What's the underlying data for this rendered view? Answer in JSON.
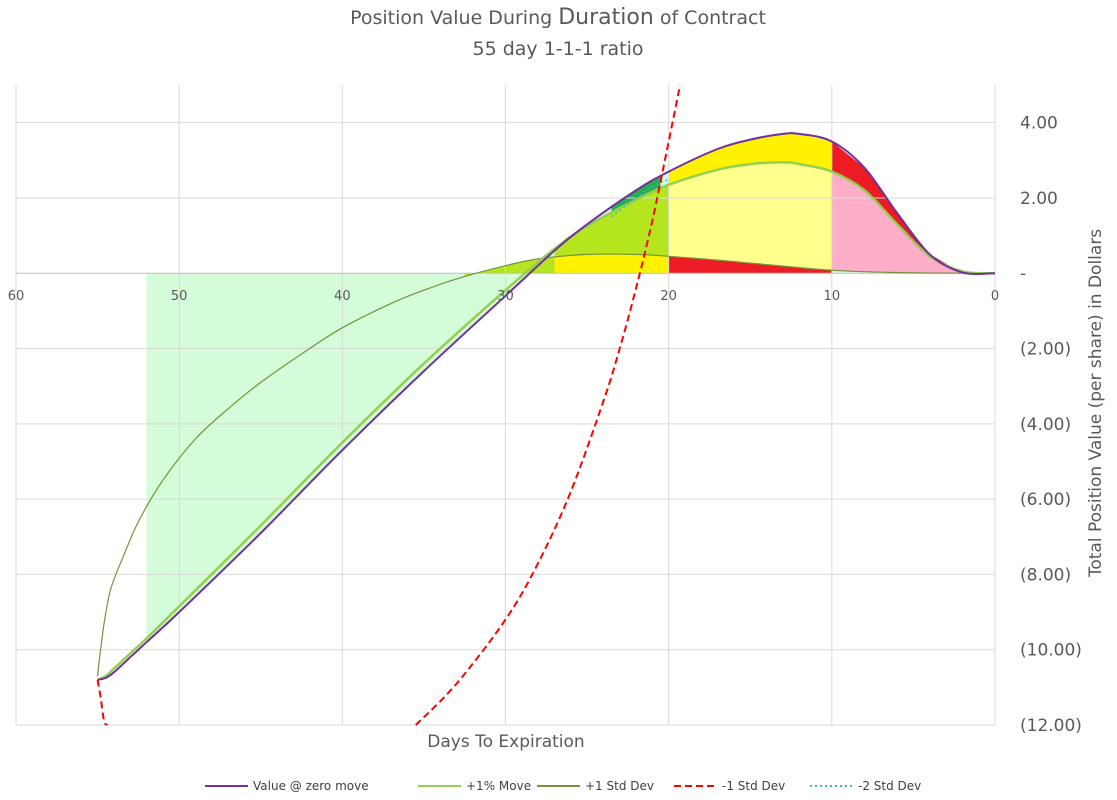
{
  "chart_data": {
    "type": "line",
    "title_prefix": "Position Value During ",
    "title_emphasis": "Duration",
    "title_suffix": " of Contract",
    "subtitle": "55 day 1-1-1 ratio",
    "xlabel": "Days To Expiration",
    "ylabel": "Total Position Value (per share) in Dollars",
    "xlim": [
      60,
      0
    ],
    "ylim": [
      -12,
      5
    ],
    "x_ticks": [
      60,
      50,
      40,
      30,
      20,
      10,
      0
    ],
    "x_tick_labels": [
      "60",
      "50",
      "40",
      "30",
      "20",
      "10",
      "0"
    ],
    "y_ticks": [
      4,
      2,
      0,
      -2,
      -4,
      -6,
      -8,
      -10,
      -12
    ],
    "y_tick_labels": [
      "4.00",
      "2.00",
      "-",
      "(2.00)",
      "(4.00)",
      "(6.00)",
      "(8.00)",
      "(10.00)",
      "(12.00)"
    ],
    "x_gridlines": [
      60,
      50,
      40,
      30,
      20,
      10,
      0
    ],
    "y_gridlines": [
      4,
      2,
      -2,
      -4,
      -6,
      -8,
      -10,
      -12
    ],
    "legend_position": "bottom",
    "series": [
      {
        "name": "Value @ zero move",
        "color": "#7030a0",
        "style": "solid",
        "x": [
          55,
          54.5,
          54,
          53,
          52,
          50,
          45,
          40,
          35,
          30,
          27,
          25,
          22,
          20,
          17,
          15,
          13,
          12,
          10,
          8,
          6,
          4,
          2,
          0
        ],
        "y": [
          -10.8,
          -10.75,
          -10.6,
          -10.2,
          -9.8,
          -9.0,
          -6.9,
          -4.7,
          -2.6,
          -0.6,
          0.6,
          1.3,
          2.2,
          2.7,
          3.3,
          3.55,
          3.7,
          3.7,
          3.5,
          2.8,
          1.6,
          0.5,
          0.02,
          0.0
        ]
      },
      {
        "name": "+1% Move",
        "color": "#92d050",
        "style": "solid",
        "x": [
          55,
          54.5,
          54,
          53,
          52,
          50,
          45,
          40,
          35,
          30,
          27,
          25,
          22,
          20,
          17,
          15,
          13,
          12,
          10,
          8,
          6,
          4,
          2,
          0
        ],
        "y": [
          -10.8,
          -10.7,
          -10.5,
          -10.1,
          -9.7,
          -8.85,
          -6.7,
          -4.5,
          -2.4,
          -0.45,
          0.65,
          1.25,
          1.95,
          2.35,
          2.75,
          2.9,
          2.95,
          2.9,
          2.7,
          2.2,
          1.3,
          0.45,
          0.05,
          0.0
        ]
      },
      {
        "name": "+1 Std Dev",
        "color": "#76923c",
        "style": "solid",
        "x": [
          55,
          54.9,
          54.6,
          54.2,
          53.5,
          52.5,
          51,
          49,
          47,
          45,
          42,
          40,
          37,
          35,
          33,
          30,
          28,
          25,
          22,
          20,
          17,
          15,
          12,
          10,
          8,
          5,
          2,
          0
        ],
        "y": [
          -10.7,
          -10.3,
          -9.3,
          -8.4,
          -7.6,
          -6.6,
          -5.5,
          -4.4,
          -3.6,
          -2.9,
          -2.0,
          -1.45,
          -0.8,
          -0.45,
          -0.15,
          0.2,
          0.38,
          0.5,
          0.5,
          0.45,
          0.35,
          0.27,
          0.15,
          0.08,
          0.04,
          0.01,
          0.0,
          0.0
        ]
      },
      {
        "name": "-1 Std Dev",
        "color": "#ff0000",
        "style": "dashed",
        "x": [
          55,
          54.8,
          54.6,
          54.4,
          35.5,
          33,
          30,
          28,
          26,
          24,
          23,
          22,
          21,
          20,
          19.3
        ],
        "y": [
          -10.8,
          -11.3,
          -11.9,
          -12.0,
          -12.0,
          -10.9,
          -9.2,
          -7.7,
          -5.8,
          -3.4,
          -2.0,
          -0.4,
          1.4,
          3.5,
          5.0
        ]
      },
      {
        "name": "-2 Std Dev",
        "color": "#4bacc6",
        "style": "dotted",
        "x": [
          23.5,
          22,
          21,
          20
        ],
        "y": [
          1.5,
          2.0,
          2.3,
          2.5
        ]
      }
    ],
    "region_fills": [
      {
        "name": "loss-region",
        "color": "#d4fcd8"
      },
      {
        "name": "band-yellow-green",
        "color": "#b5e61d"
      },
      {
        "name": "band-yellow",
        "color": "#fff200"
      },
      {
        "name": "band-light-yellow",
        "color": "#ffff8c"
      },
      {
        "name": "band-red",
        "color": "#ed1c24"
      },
      {
        "name": "band-pink",
        "color": "#ffaec9"
      },
      {
        "name": "band-green",
        "color": "#22b14c"
      }
    ]
  }
}
